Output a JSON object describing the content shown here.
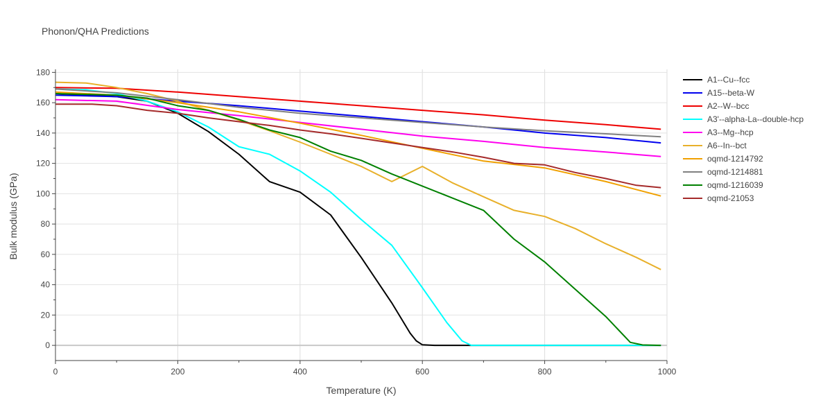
{
  "chart_data": {
    "type": "line",
    "title": "Phonon/QHA Predictions",
    "xlabel": "Temperature (K)",
    "ylabel": "Bulk modulus (GPa)",
    "xlim": [
      0,
      1000
    ],
    "ylim": [
      -10,
      182
    ],
    "xticks": [
      0,
      200,
      400,
      600,
      800,
      1000
    ],
    "yticks": [
      0,
      20,
      40,
      60,
      80,
      100,
      120,
      140,
      160,
      180
    ],
    "grid": true,
    "legend_position": "right",
    "series": [
      {
        "name": "A1--Cu--fcc",
        "color": "#000000",
        "points": [
          [
            0,
            166
          ],
          [
            100,
            164
          ],
          [
            150,
            161
          ],
          [
            200,
            153
          ],
          [
            250,
            141
          ],
          [
            300,
            126
          ],
          [
            350,
            108
          ],
          [
            400,
            101
          ],
          [
            450,
            86
          ],
          [
            500,
            58
          ],
          [
            550,
            28
          ],
          [
            580,
            8
          ],
          [
            590,
            3
          ],
          [
            600,
            0.4
          ],
          [
            620,
            0
          ],
          [
            990,
            0
          ]
        ]
      },
      {
        "name": "A15--beta-W",
        "color": "#0000ee",
        "points": [
          [
            0,
            165
          ],
          [
            100,
            164
          ],
          [
            200,
            161
          ],
          [
            300,
            158
          ],
          [
            400,
            154.5
          ],
          [
            500,
            151
          ],
          [
            600,
            147.5
          ],
          [
            700,
            144
          ],
          [
            800,
            140
          ],
          [
            900,
            137
          ],
          [
            990,
            133.5
          ]
        ]
      },
      {
        "name": "A2--W--bcc",
        "color": "#ee0000",
        "points": [
          [
            0,
            170
          ],
          [
            100,
            169.5
          ],
          [
            200,
            167
          ],
          [
            300,
            164
          ],
          [
            400,
            161
          ],
          [
            500,
            158
          ],
          [
            600,
            155
          ],
          [
            700,
            152
          ],
          [
            800,
            148.5
          ],
          [
            900,
            145.5
          ],
          [
            990,
            142.5
          ]
        ]
      },
      {
        "name": "A3'--alpha-La--double-hcp",
        "color": "#00ffff",
        "points": [
          [
            0,
            169
          ],
          [
            50,
            168.5
          ],
          [
            100,
            166
          ],
          [
            150,
            161
          ],
          [
            200,
            154
          ],
          [
            250,
            144
          ],
          [
            300,
            131
          ],
          [
            350,
            126
          ],
          [
            400,
            115
          ],
          [
            450,
            101
          ],
          [
            500,
            83
          ],
          [
            550,
            66
          ],
          [
            600,
            38
          ],
          [
            640,
            15
          ],
          [
            665,
            3
          ],
          [
            680,
            0
          ],
          [
            990,
            0
          ]
        ]
      },
      {
        "name": "A3--Mg--hcp",
        "color": "#ff00ee",
        "points": [
          [
            0,
            162
          ],
          [
            100,
            161
          ],
          [
            200,
            155.5
          ],
          [
            300,
            151.5
          ],
          [
            400,
            147
          ],
          [
            500,
            142.5
          ],
          [
            600,
            138
          ],
          [
            700,
            134.5
          ],
          [
            800,
            130.5
          ],
          [
            900,
            127.5
          ],
          [
            990,
            124.5
          ]
        ]
      },
      {
        "name": "A6--In--bct",
        "color": "#e8b02a",
        "points": [
          [
            0,
            173.5
          ],
          [
            50,
            173
          ],
          [
            100,
            170
          ],
          [
            150,
            166
          ],
          [
            200,
            161
          ],
          [
            250,
            155
          ],
          [
            300,
            148.5
          ],
          [
            350,
            141.5
          ],
          [
            400,
            134
          ],
          [
            450,
            126
          ],
          [
            500,
            118
          ],
          [
            550,
            108
          ],
          [
            600,
            118
          ],
          [
            650,
            107
          ],
          [
            700,
            98
          ],
          [
            750,
            89
          ],
          [
            800,
            85
          ],
          [
            850,
            77
          ],
          [
            900,
            67
          ],
          [
            950,
            58
          ],
          [
            990,
            50
          ]
        ]
      },
      {
        "name": "oqmd-1214792",
        "color": "#f0a000",
        "points": [
          [
            0,
            167
          ],
          [
            100,
            165
          ],
          [
            200,
            160
          ],
          [
            300,
            154
          ],
          [
            400,
            146.5
          ],
          [
            500,
            138.5
          ],
          [
            600,
            130
          ],
          [
            700,
            121.5
          ],
          [
            800,
            117
          ],
          [
            900,
            108
          ],
          [
            990,
            98.5
          ]
        ]
      },
      {
        "name": "oqmd-1214881",
        "color": "#808080",
        "points": [
          [
            0,
            169
          ],
          [
            100,
            166.5
          ],
          [
            200,
            162
          ],
          [
            300,
            157
          ],
          [
            400,
            153
          ],
          [
            500,
            150
          ],
          [
            600,
            147
          ],
          [
            700,
            144
          ],
          [
            800,
            141.5
          ],
          [
            900,
            139.5
          ],
          [
            990,
            137.5
          ]
        ]
      },
      {
        "name": "oqmd-1216039",
        "color": "#008000",
        "points": [
          [
            0,
            166
          ],
          [
            100,
            165
          ],
          [
            150,
            163
          ],
          [
            200,
            158
          ],
          [
            250,
            155
          ],
          [
            300,
            149
          ],
          [
            350,
            142
          ],
          [
            400,
            137
          ],
          [
            450,
            128
          ],
          [
            500,
            122
          ],
          [
            550,
            113
          ],
          [
            600,
            105
          ],
          [
            650,
            97
          ],
          [
            700,
            89
          ],
          [
            750,
            70
          ],
          [
            800,
            55
          ],
          [
            850,
            37
          ],
          [
            900,
            19
          ],
          [
            940,
            2
          ],
          [
            960,
            0.3
          ],
          [
            990,
            0
          ]
        ]
      },
      {
        "name": "oqmd-21053",
        "color": "#a52a2a",
        "points": [
          [
            0,
            159
          ],
          [
            60,
            159
          ],
          [
            100,
            158
          ],
          [
            150,
            155
          ],
          [
            200,
            153
          ],
          [
            250,
            150
          ],
          [
            300,
            147.5
          ],
          [
            350,
            145
          ],
          [
            400,
            142
          ],
          [
            450,
            139.5
          ],
          [
            500,
            136.5
          ],
          [
            550,
            133.5
          ],
          [
            600,
            130.5
          ],
          [
            650,
            127.5
          ],
          [
            700,
            124
          ],
          [
            750,
            120
          ],
          [
            800,
            119
          ],
          [
            850,
            114
          ],
          [
            900,
            110
          ],
          [
            950,
            105.5
          ],
          [
            990,
            104
          ]
        ]
      }
    ]
  }
}
